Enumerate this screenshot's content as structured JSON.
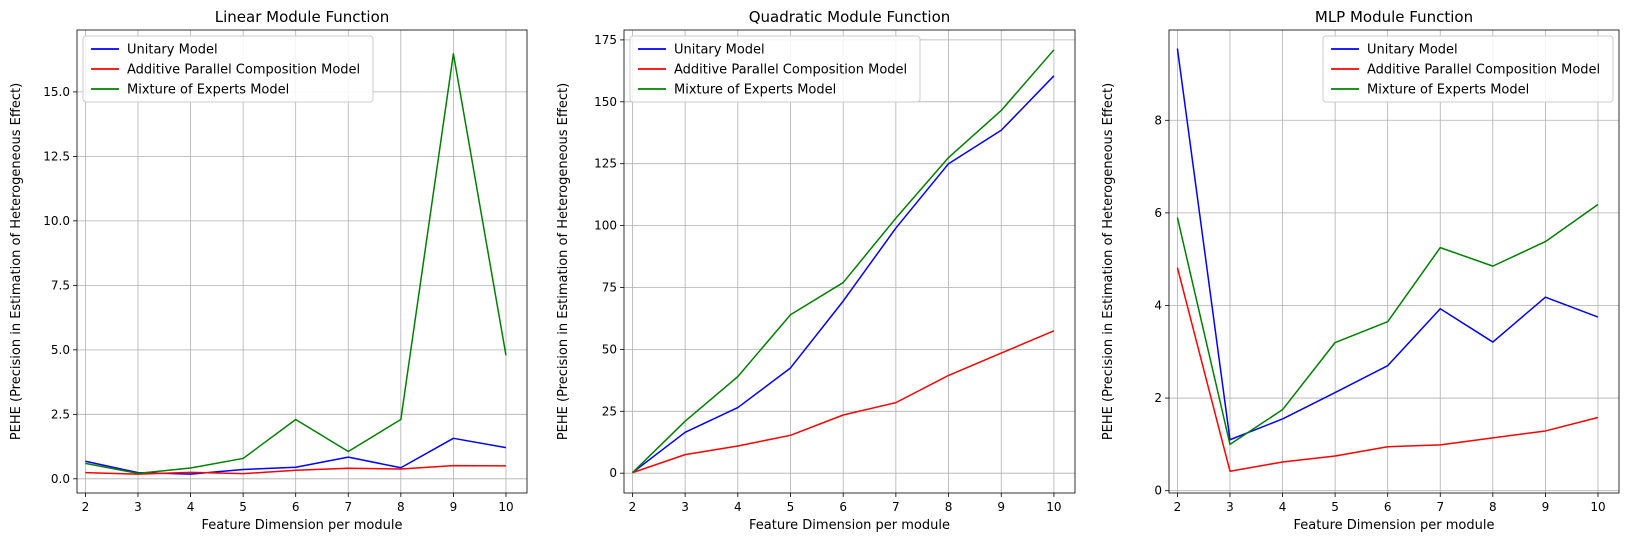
{
  "chart_data": [
    {
      "type": "line",
      "title": "Linear Module Function",
      "xlabel": "Feature Dimension per module",
      "ylabel": "PEHE (Precision in Estimation of Heterogeneous Effect)",
      "x": [
        2,
        3,
        4,
        5,
        6,
        7,
        8,
        9,
        10
      ],
      "xlim": [
        1.84,
        10.4
      ],
      "ylim": [
        -0.55,
        17.4
      ],
      "yticks": [
        0.0,
        2.5,
        5.0,
        7.5,
        10.0,
        12.5,
        15.0
      ],
      "ytick_labels": [
        "0.0",
        "2.5",
        "5.0",
        "7.5",
        "10.0",
        "12.5",
        "15.0"
      ],
      "grid": true,
      "legend_position": "upper-left",
      "series": [
        {
          "name": "Unitary Model",
          "color": "#0000ff",
          "values": [
            0.68,
            0.24,
            0.18,
            0.36,
            0.45,
            0.84,
            0.43,
            1.57,
            1.21
          ]
        },
        {
          "name": "Additive Parallel Composition Model",
          "color": "#ff0000",
          "values": [
            0.24,
            0.18,
            0.25,
            0.2,
            0.33,
            0.41,
            0.38,
            0.51,
            0.5
          ]
        },
        {
          "name": "Mixture of Experts Model",
          "color": "#008000",
          "values": [
            0.6,
            0.21,
            0.42,
            0.79,
            2.3,
            1.06,
            2.3,
            16.48,
            4.79
          ]
        }
      ]
    },
    {
      "type": "line",
      "title": "Quadratic Module Function",
      "xlabel": "Feature Dimension per module",
      "ylabel": "PEHE (Precision in Estimation of Heterogeneous Effect)",
      "x": [
        2,
        3,
        4,
        5,
        6,
        7,
        8,
        9,
        10
      ],
      "xlim": [
        1.84,
        10.4
      ],
      "ylim": [
        -8,
        179
      ],
      "yticks": [
        0,
        25,
        50,
        75,
        100,
        125,
        150,
        175
      ],
      "ytick_labels": [
        "0",
        "25",
        "50",
        "75",
        "100",
        "125",
        "150",
        "175"
      ],
      "grid": true,
      "legend_position": "upper-left",
      "series": [
        {
          "name": "Unitary Model",
          "color": "#0000ff",
          "values": [
            0.2,
            16.5,
            26.5,
            42.5,
            69.5,
            99.0,
            125.0,
            138.5,
            160.5
          ]
        },
        {
          "name": "Additive Parallel Composition Model",
          "color": "#ff0000",
          "values": [
            0.2,
            7.5,
            11.0,
            15.3,
            23.5,
            28.5,
            39.5,
            48.5,
            57.5
          ]
        },
        {
          "name": "Mixture of Experts Model",
          "color": "#008000",
          "values": [
            0.2,
            21.0,
            39.0,
            64.0,
            77.0,
            103.0,
            127.5,
            146.5,
            171.0
          ]
        }
      ]
    },
    {
      "type": "line",
      "title": "MLP Module Function",
      "xlabel": "Feature Dimension per module",
      "ylabel": "PEHE (Precision in Estimation of Heterogeneous Effect)",
      "x": [
        2,
        3,
        4,
        5,
        6,
        7,
        8,
        9,
        10
      ],
      "xlim": [
        1.84,
        10.4
      ],
      "ylim": [
        -0.05,
        9.95
      ],
      "yticks": [
        0,
        2,
        4,
        6,
        8
      ],
      "ytick_labels": [
        "0",
        "2",
        "4",
        "6",
        "8"
      ],
      "grid": true,
      "legend_position": "upper-right",
      "series": [
        {
          "name": "Unitary Model",
          "color": "#0000ff",
          "values": [
            9.55,
            1.1,
            1.55,
            2.12,
            2.7,
            3.93,
            3.21,
            4.18,
            3.75
          ]
        },
        {
          "name": "Additive Parallel Composition Model",
          "color": "#ff0000",
          "values": [
            4.82,
            0.42,
            0.62,
            0.75,
            0.95,
            0.99,
            1.14,
            1.29,
            1.58
          ]
        },
        {
          "name": "Mixture of Experts Model",
          "color": "#008000",
          "values": [
            5.9,
            1.0,
            1.75,
            3.2,
            3.65,
            5.25,
            4.85,
            5.38,
            6.18
          ]
        }
      ]
    }
  ]
}
